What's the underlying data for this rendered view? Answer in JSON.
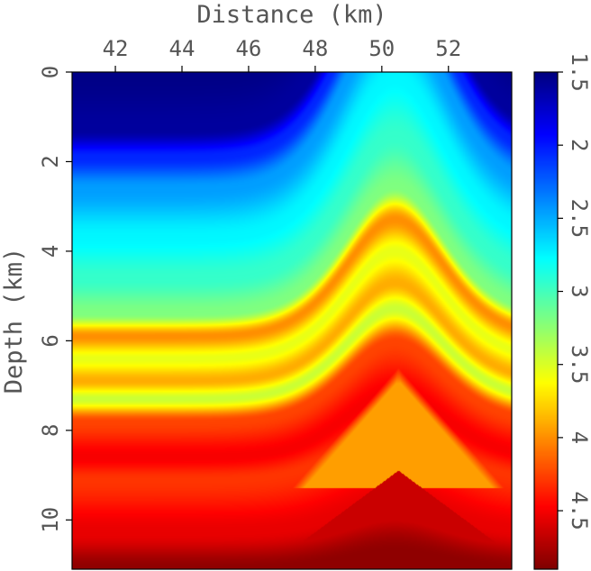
{
  "chart_data": {
    "type": "heatmap",
    "title": "",
    "xlabel": "Distance (km)",
    "ylabel": "Depth (km)",
    "x_axis_position": "top",
    "y_axis_inverted": true,
    "xlim": [
      40.7,
      53.9
    ],
    "ylim": [
      0,
      11.1
    ],
    "x_ticks": [
      {
        "value": 42,
        "label": "42"
      },
      {
        "value": 44,
        "label": "44"
      },
      {
        "value": 46,
        "label": "46"
      },
      {
        "value": 48,
        "label": "48"
      },
      {
        "value": 50,
        "label": "50"
      },
      {
        "value": 52,
        "label": "52"
      }
    ],
    "y_ticks": [
      {
        "value": 0,
        "label": "0"
      },
      {
        "value": 2,
        "label": "2"
      },
      {
        "value": 4,
        "label": "4"
      },
      {
        "value": 6,
        "label": "6"
      },
      {
        "value": 8,
        "label": "8"
      },
      {
        "value": 10,
        "label": "10"
      }
    ],
    "colormap": "jet",
    "colorbar": {
      "range": [
        1.5,
        4.9
      ],
      "direction": "top-to-bottom",
      "ticks": [
        {
          "value": 1.5,
          "label": "1.5"
        },
        {
          "value": 2,
          "label": "2"
        },
        {
          "value": 2.5,
          "label": "2.5"
        },
        {
          "value": 3,
          "label": "3"
        },
        {
          "value": 3.5,
          "label": "3.5"
        },
        {
          "value": 4,
          "label": "4"
        },
        {
          "value": 4.5,
          "label": "4.5"
        }
      ]
    },
    "field": {
      "layers": [
        {
          "depth": 0.0,
          "value": 1.52
        },
        {
          "depth": 1.3,
          "value": 1.6
        },
        {
          "depth": 1.9,
          "value": 2.05
        },
        {
          "depth": 2.6,
          "value": 2.45
        },
        {
          "depth": 3.7,
          "value": 2.75
        },
        {
          "depth": 4.6,
          "value": 2.95
        },
        {
          "depth": 5.4,
          "value": 3.2
        },
        {
          "depth": 5.9,
          "value": 4.0
        },
        {
          "depth": 6.4,
          "value": 3.55
        },
        {
          "depth": 6.9,
          "value": 3.9
        },
        {
          "depth": 7.3,
          "value": 3.45
        },
        {
          "depth": 7.8,
          "value": 4.25
        },
        {
          "depth": 8.6,
          "value": 4.5
        },
        {
          "depth": 9.1,
          "value": 4.3
        },
        {
          "depth": 10.3,
          "value": 4.55
        },
        {
          "depth": 11.1,
          "value": 4.85
        }
      ],
      "anticline": {
        "center_x": 50.4,
        "crest_depth": 2.2,
        "half_width_km": 2.4,
        "amplitude_km": 3.6
      },
      "salt_body": {
        "apex_x": 50.5,
        "apex_depth": 6.6,
        "base_depth": 9.3,
        "half_width_km": 3.2,
        "value": 3.95
      }
    }
  }
}
